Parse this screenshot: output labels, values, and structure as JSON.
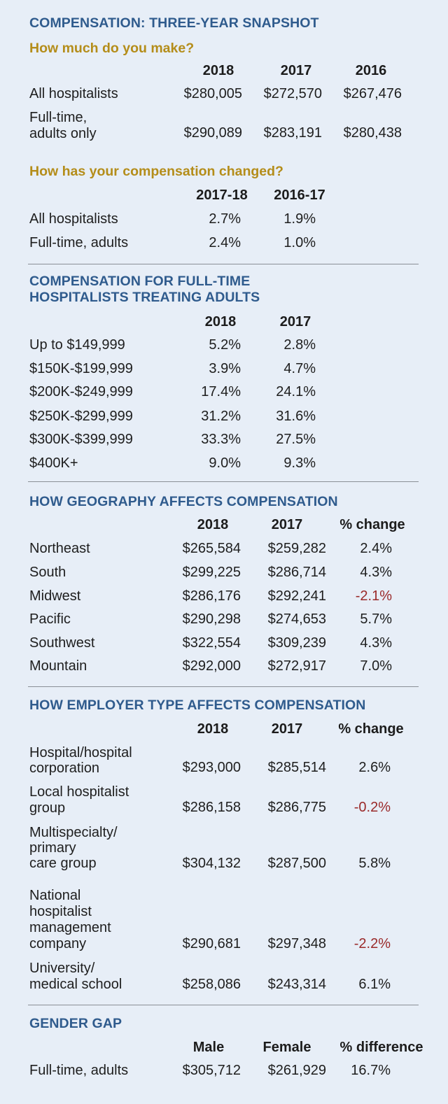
{
  "snapshot": {
    "title": "COMPENSATION: THREE-YEAR SNAPSHOT",
    "make": {
      "subtitle": "How much do you make?",
      "columns": [
        "2018",
        "2017",
        "2016"
      ],
      "rows": [
        {
          "label": "All hospitalists",
          "values": [
            "$280,005",
            "$272,570",
            "$267,476"
          ]
        },
        {
          "label_lines": [
            "Full-time,",
            "adults only"
          ],
          "values": [
            "$290,089",
            "$283,191",
            "$280,438"
          ]
        }
      ]
    },
    "changed": {
      "subtitle": "How has your compensation changed?",
      "columns": [
        "2017-18",
        "2016-17"
      ],
      "rows": [
        {
          "label": "All hospitalists",
          "values": [
            "2.7%",
            "1.9%"
          ]
        },
        {
          "label": "Full-time, adults",
          "values": [
            "2.4%",
            "1.0%"
          ]
        }
      ]
    }
  },
  "fulltime": {
    "title_lines": [
      "COMPENSATION FOR FULL-TIME",
      "HOSPITALISTS TREATING ADULTS"
    ],
    "columns": [
      "2018",
      "2017"
    ],
    "rows": [
      {
        "label": "Up to $149,999",
        "values": [
          "5.2%",
          "2.8%"
        ]
      },
      {
        "label": "$150K-$199,999",
        "values": [
          "3.9%",
          "4.7%"
        ]
      },
      {
        "label": "$200K-$249,999",
        "values": [
          "17.4%",
          "24.1%"
        ]
      },
      {
        "label": "$250K-$299,999",
        "values": [
          "31.2%",
          "31.6%"
        ]
      },
      {
        "label": "$300K-$399,999",
        "values": [
          "33.3%",
          "27.5%"
        ]
      },
      {
        "label": "$400K+",
        "values": [
          "9.0%",
          "9.3%"
        ]
      }
    ]
  },
  "geography": {
    "title": "HOW GEOGRAPHY AFFECTS COMPENSATION",
    "columns": [
      "2018",
      "2017",
      "% change"
    ],
    "rows": [
      {
        "label": "Northeast",
        "values": [
          "$265,584",
          "$259,282",
          "2.4%"
        ]
      },
      {
        "label": "South",
        "values": [
          "$299,225",
          "$286,714",
          "4.3%"
        ]
      },
      {
        "label": "Midwest",
        "values": [
          "$286,176",
          "$292,241",
          "-2.1%"
        ]
      },
      {
        "label": "Pacific",
        "values": [
          "$290,298",
          "$274,653",
          "5.7%"
        ]
      },
      {
        "label": "Southwest",
        "values": [
          "$322,554",
          "$309,239",
          "4.3%"
        ]
      },
      {
        "label": "Mountain",
        "values": [
          "$292,000",
          "$272,917",
          "7.0%"
        ]
      }
    ]
  },
  "employer": {
    "title": "HOW EMPLOYER TYPE AFFECTS COMPENSATION",
    "columns": [
      "2018",
      "2017",
      "% change"
    ],
    "rows": [
      {
        "label_lines": [
          "Hospital/hospital",
          "corporation"
        ],
        "values": [
          "$293,000",
          "$285,514",
          "2.6%"
        ]
      },
      {
        "label_lines": [
          "Local hospitalist",
          "group"
        ],
        "values": [
          "$286,158",
          "$286,775",
          "-0.2%"
        ]
      },
      {
        "label_lines": [
          "Multispecialty/",
          "primary",
          "care group"
        ],
        "values": [
          "$304,132",
          "$287,500",
          "5.8%"
        ]
      },
      {
        "label_lines": [
          "National",
          "hospitalist",
          "management",
          "company"
        ],
        "values": [
          "$290,681",
          "$297,348",
          "-2.2%"
        ]
      },
      {
        "label_lines": [
          "University/",
          "medical school"
        ],
        "values": [
          "$258,086",
          "$243,314",
          "6.1%"
        ]
      }
    ]
  },
  "gender": {
    "title": "GENDER GAP",
    "columns": [
      "Male",
      "Female",
      "% difference"
    ],
    "rows": [
      {
        "label": "Full-time, adults",
        "values": [
          "$305,712",
          "$261,929",
          "16.7%"
        ]
      }
    ]
  },
  "colors": {
    "heading_blue": "#2f5b8d",
    "heading_gold": "#b48d1a",
    "negative_red": "#9a2a2a",
    "background": "#e7eef7"
  }
}
